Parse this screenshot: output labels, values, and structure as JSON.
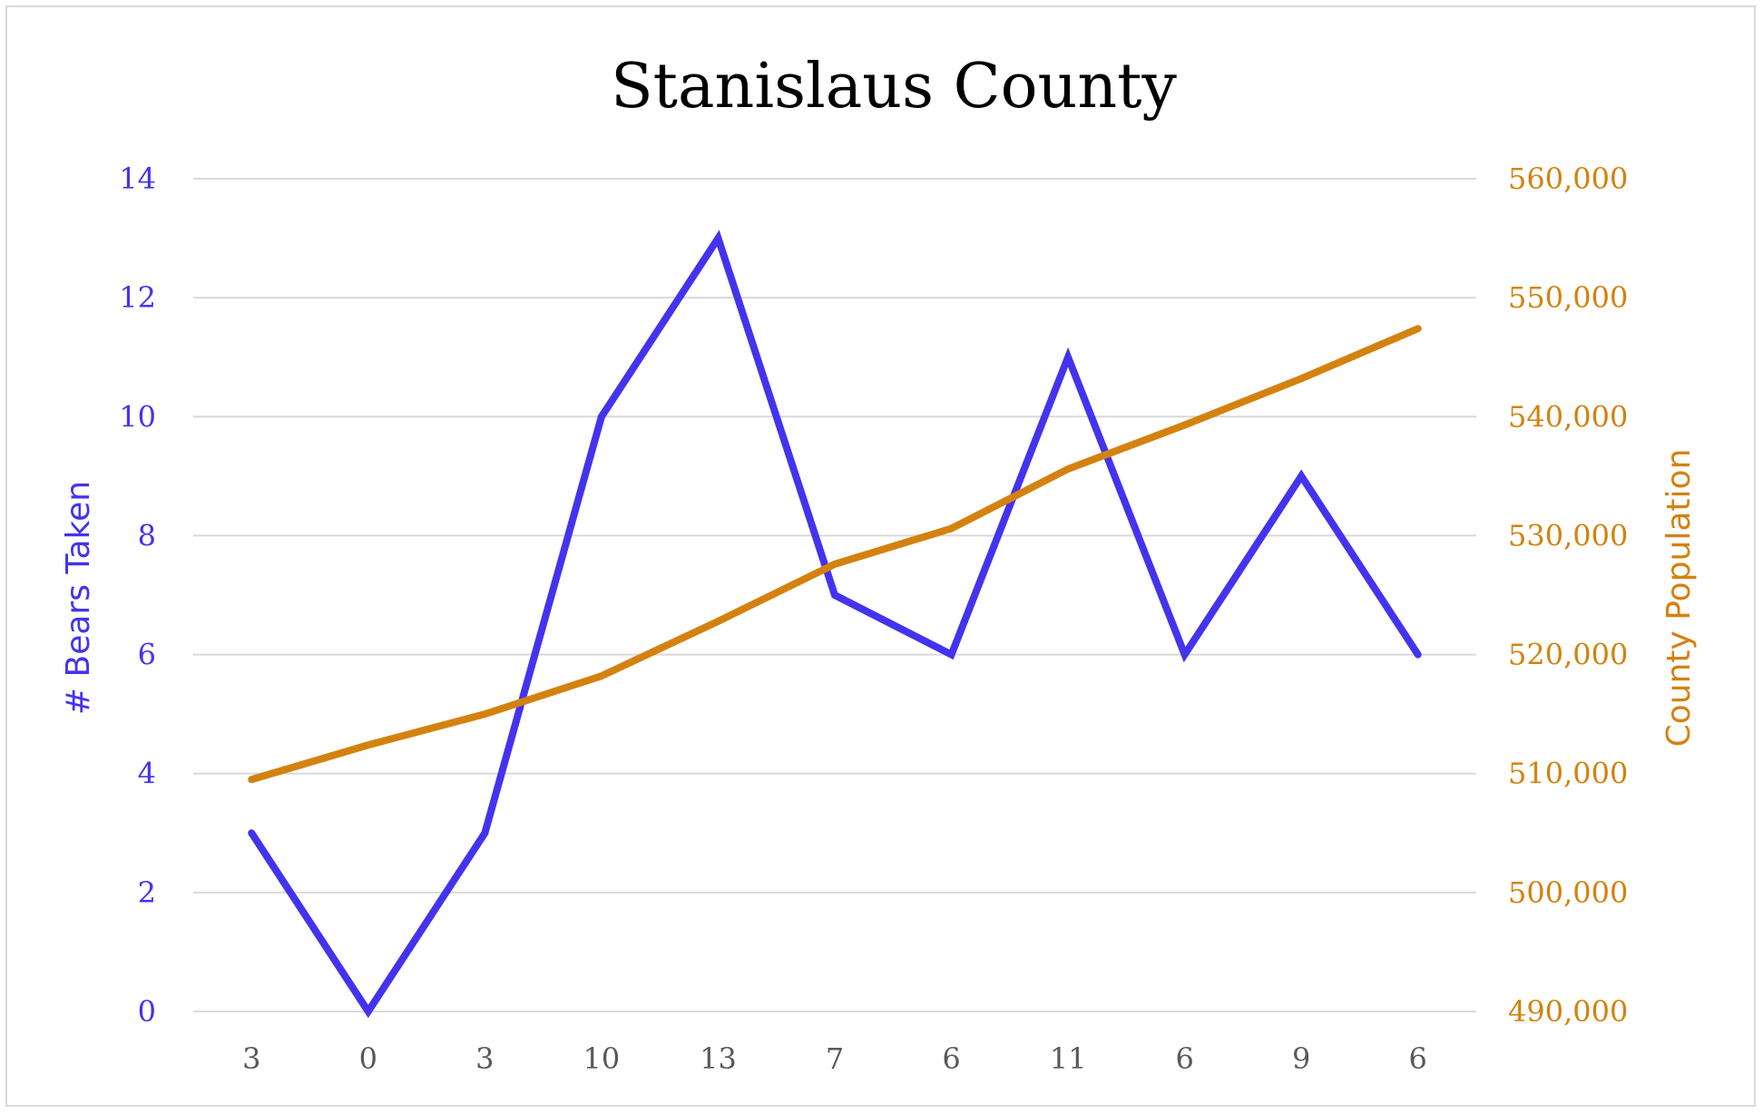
{
  "chart_data": {
    "type": "line",
    "title": "Stanislaus County",
    "categories": [
      "3",
      "0",
      "3",
      "10",
      "13",
      "7",
      "6",
      "11",
      "6",
      "9",
      "6"
    ],
    "ylabel_left": "# Bears Taken",
    "ylabel_right": "County Population",
    "ylim_left": [
      0,
      14
    ],
    "ylim_right": [
      490000,
      560000
    ],
    "yticks_left": [
      "0",
      "2",
      "4",
      "6",
      "8",
      "10",
      "12",
      "14"
    ],
    "yticks_right": [
      "490,000",
      "500,000",
      "510,000",
      "520,000",
      "530,000",
      "540,000",
      "550,000",
      "560,000"
    ],
    "grid": true,
    "series": [
      {
        "name": "# Bears Taken",
        "axis": "left",
        "color": "#4433ee",
        "values": [
          3,
          0,
          3,
          10,
          13,
          7,
          6,
          11,
          6,
          9,
          6
        ]
      },
      {
        "name": "County Population",
        "axis": "right",
        "color": "#d4820f",
        "values": [
          509500,
          512400,
          515000,
          518200,
          522800,
          527600,
          530600,
          535600,
          539300,
          543200,
          547400
        ]
      }
    ]
  },
  "colors": {
    "left_axis": "#4433ee",
    "right_axis": "#d4820f",
    "category_ticks": "#595959",
    "gridline": "#d9d9d9"
  }
}
